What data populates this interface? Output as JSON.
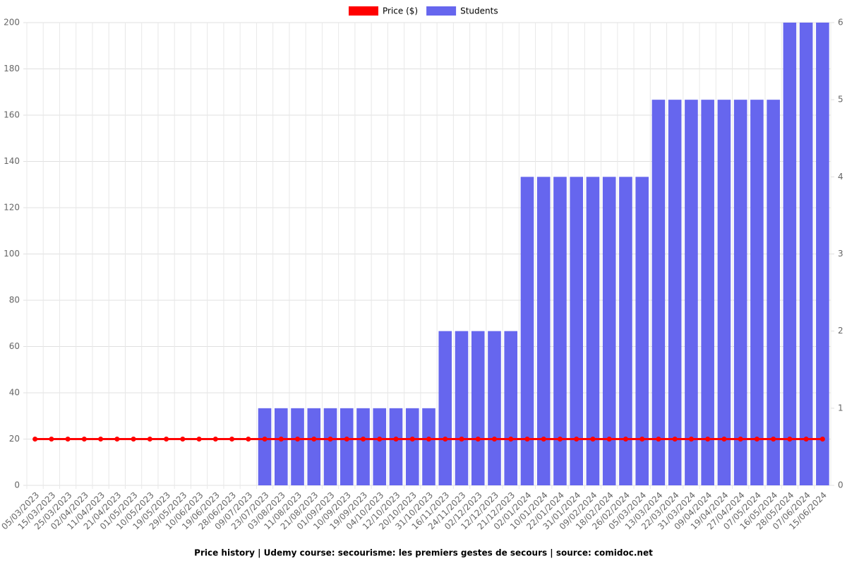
{
  "chart_data": {
    "type": "bar-line",
    "title": "Price history | Udemy course: secourisme: les premiers gestes de secours | source: comidoc.net",
    "categories": [
      "05/03/2023",
      "15/03/2023",
      "25/03/2023",
      "02/04/2023",
      "11/04/2023",
      "21/04/2023",
      "01/05/2023",
      "10/05/2023",
      "19/05/2023",
      "29/05/2023",
      "10/06/2023",
      "19/06/2023",
      "28/06/2023",
      "09/07/2023",
      "23/07/2023",
      "03/08/2023",
      "11/08/2023",
      "21/08/2023",
      "01/09/2023",
      "10/09/2023",
      "19/09/2023",
      "04/10/2023",
      "12/10/2023",
      "20/10/2023",
      "31/10/2023",
      "16/11/2023",
      "24/11/2023",
      "02/12/2023",
      "12/12/2023",
      "21/12/2023",
      "02/01/2024",
      "10/01/2024",
      "22/01/2024",
      "31/01/2024",
      "09/02/2024",
      "18/02/2024",
      "26/02/2024",
      "05/03/2024",
      "13/03/2024",
      "22/03/2024",
      "31/03/2024",
      "09/04/2024",
      "19/04/2024",
      "27/04/2024",
      "07/05/2024",
      "16/05/2024",
      "28/05/2024",
      "07/06/2024",
      "15/06/2024"
    ],
    "series": [
      {
        "name": "Price ($)",
        "type": "line",
        "color": "#ff0000",
        "axis": "y",
        "values": [
          20,
          20,
          20,
          20,
          20,
          20,
          20,
          20,
          20,
          20,
          20,
          20,
          20,
          20,
          20,
          20,
          20,
          20,
          20,
          20,
          20,
          20,
          20,
          20,
          20,
          20,
          20,
          20,
          20,
          20,
          20,
          20,
          20,
          20,
          20,
          20,
          20,
          20,
          20,
          20,
          20,
          20,
          20,
          20,
          20,
          20,
          20,
          20,
          20
        ]
      },
      {
        "name": "Students",
        "type": "bar",
        "color": "#6666ee",
        "axis": "y2",
        "values": [
          0,
          0,
          0,
          0,
          0,
          0,
          0,
          0,
          0,
          0,
          0,
          0,
          0,
          0,
          1,
          1,
          1,
          1,
          1,
          1,
          1,
          1,
          1,
          1,
          1,
          2,
          2,
          2,
          2,
          2,
          4,
          4,
          4,
          4,
          4,
          4,
          4,
          4,
          5,
          5,
          5,
          5,
          5,
          5,
          5,
          5,
          6,
          6,
          6
        ]
      }
    ],
    "ylim": [
      0,
      200
    ],
    "yticks": [
      0,
      20,
      40,
      60,
      80,
      100,
      120,
      140,
      160,
      180,
      200
    ],
    "y2lim": [
      0,
      6
    ],
    "y2ticks": [
      0,
      1,
      2,
      3,
      4,
      5,
      6
    ],
    "grid": true,
    "legend": "top"
  }
}
